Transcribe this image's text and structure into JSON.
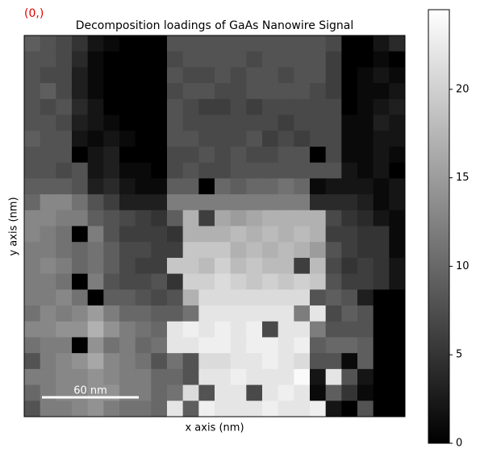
{
  "chart_data": {
    "type": "heatmap",
    "label": "(0,)",
    "title": "Decomposition loadings of GaAs Nanowire Signal",
    "xlabel": "x axis (nm)",
    "ylabel": "y axis (nm)",
    "scale_bar": "60 nm",
    "cmap": "gray",
    "zlim": [
      0,
      24.5
    ],
    "zticks": [
      0,
      5,
      10,
      15,
      20
    ],
    "values": [
      [
        9,
        8,
        7,
        5,
        2,
        1,
        0,
        0,
        0,
        8,
        8,
        8,
        8,
        8,
        8,
        8,
        8,
        8,
        8,
        7,
        0,
        0,
        2,
        4
      ],
      [
        8,
        8,
        7,
        4,
        1,
        0,
        0,
        0,
        0,
        7,
        8,
        8,
        8,
        8,
        7,
        8,
        8,
        8,
        8,
        6,
        0,
        0,
        1,
        0
      ],
      [
        8,
        7,
        7,
        3,
        1,
        0,
        0,
        0,
        0,
        8,
        7,
        7,
        8,
        7,
        8,
        8,
        7,
        8,
        8,
        6,
        0,
        1,
        2,
        1
      ],
      [
        8,
        9,
        7,
        3,
        1,
        0,
        0,
        0,
        0,
        7,
        8,
        8,
        7,
        7,
        8,
        8,
        8,
        8,
        7,
        6,
        0,
        1,
        1,
        2
      ],
      [
        8,
        7,
        8,
        4,
        2,
        0,
        0,
        0,
        0,
        8,
        7,
        6,
        6,
        7,
        6,
        7,
        7,
        7,
        7,
        7,
        0,
        1,
        2,
        3
      ],
      [
        8,
        8,
        7,
        3,
        2,
        1,
        0,
        0,
        0,
        8,
        7,
        7,
        7,
        7,
        7,
        7,
        6,
        7,
        7,
        7,
        1,
        1,
        3,
        2
      ],
      [
        9,
        8,
        8,
        2,
        1,
        2,
        1,
        0,
        0,
        8,
        8,
        7,
        7,
        7,
        8,
        6,
        7,
        6,
        7,
        7,
        1,
        1,
        2,
        2
      ],
      [
        8,
        8,
        8,
        0,
        2,
        3,
        0,
        0,
        0,
        7,
        7,
        8,
        7,
        8,
        7,
        7,
        8,
        8,
        0,
        7,
        1,
        1,
        2,
        1
      ],
      [
        8,
        8,
        7,
        8,
        2,
        3,
        1,
        1,
        0,
        7,
        8,
        7,
        7,
        8,
        8,
        8,
        8,
        8,
        8,
        8,
        2,
        1,
        2,
        0
      ],
      [
        9,
        9,
        9,
        8,
        3,
        4,
        2,
        1,
        1,
        9,
        9,
        0,
        10,
        9,
        10,
        10,
        11,
        10,
        1,
        2,
        2,
        2,
        1,
        2
      ],
      [
        10,
        13,
        13,
        11,
        8,
        6,
        3,
        3,
        3,
        12,
        12,
        12,
        12,
        12,
        12,
        12,
        12,
        12,
        4,
        4,
        4,
        3,
        1,
        2
      ],
      [
        13,
        13,
        12,
        12,
        9,
        8,
        7,
        6,
        5,
        9,
        17,
        6,
        16,
        15,
        16,
        17,
        17,
        17,
        17,
        7,
        5,
        4,
        2,
        1
      ],
      [
        13,
        12,
        11,
        0,
        12,
        8,
        6,
        6,
        6,
        5,
        17,
        17,
        17,
        18,
        17,
        18,
        17,
        18,
        17,
        6,
        6,
        5,
        5,
        1
      ],
      [
        12,
        12,
        11,
        10,
        11,
        9,
        7,
        7,
        6,
        6,
        19,
        19,
        19,
        17,
        18,
        17,
        18,
        17,
        15,
        8,
        6,
        5,
        5,
        1
      ],
      [
        12,
        13,
        12,
        10,
        11,
        9,
        7,
        6,
        6,
        19,
        19,
        18,
        20,
        18,
        19,
        18,
        18,
        6,
        18,
        7,
        5,
        6,
        5,
        2
      ],
      [
        12,
        12,
        11,
        0,
        12,
        8,
        7,
        7,
        8,
        5,
        20,
        20,
        21,
        20,
        19,
        20,
        19,
        20,
        19,
        8,
        6,
        6,
        5,
        2
      ],
      [
        12,
        12,
        13,
        11,
        0,
        9,
        9,
        8,
        7,
        8,
        17,
        21,
        21,
        21,
        21,
        21,
        21,
        21,
        8,
        9,
        8,
        3,
        0,
        0
      ],
      [
        11,
        13,
        12,
        13,
        15,
        12,
        10,
        10,
        9,
        9,
        11,
        22,
        22,
        22,
        22,
        22,
        22,
        12,
        22,
        7,
        9,
        8,
        0,
        0
      ],
      [
        13,
        13,
        14,
        14,
        17,
        14,
        12,
        11,
        10,
        22,
        23,
        22,
        23,
        22,
        23,
        7,
        22,
        22,
        12,
        8,
        8,
        8,
        0,
        0
      ],
      [
        11,
        12,
        12,
        0,
        14,
        11,
        12,
        10,
        11,
        22,
        22,
        23,
        23,
        22,
        23,
        23,
        22,
        23,
        9,
        10,
        10,
        9,
        0,
        0
      ],
      [
        8,
        12,
        13,
        14,
        16,
        13,
        12,
        11,
        8,
        11,
        8,
        21,
        21,
        22,
        22,
        23,
        22,
        21,
        8,
        8,
        1,
        9,
        0,
        0
      ],
      [
        12,
        12,
        13,
        13,
        14,
        13,
        12,
        12,
        10,
        10,
        8,
        22,
        22,
        23,
        22,
        22,
        22,
        24,
        2,
        22,
        8,
        2,
        0,
        0
      ],
      [
        10,
        12,
        13,
        13,
        14,
        14,
        12,
        12,
        10,
        11,
        21,
        8,
        22,
        22,
        7,
        22,
        23,
        22,
        1,
        9,
        5,
        1,
        0,
        0
      ],
      [
        8,
        12,
        12,
        13,
        14,
        12,
        11,
        11,
        10,
        22,
        9,
        23,
        22,
        22,
        22,
        23,
        22,
        22,
        23,
        2,
        0,
        8,
        0,
        0
      ]
    ]
  }
}
